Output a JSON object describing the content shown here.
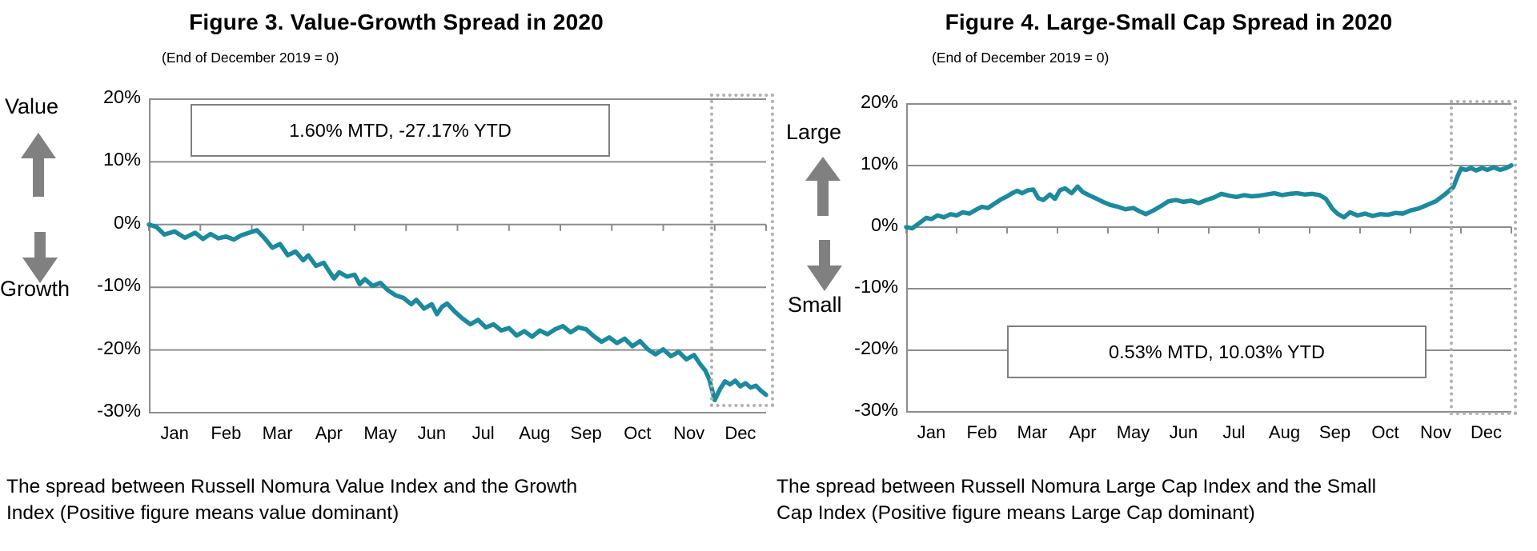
{
  "colors": {
    "line": "#1b8a9e",
    "grid": "#8c8c8c",
    "arrow": "#808080",
    "highlight_border": "#b1b1b1",
    "text": "#000000"
  },
  "chart_data": [
    {
      "type": "line",
      "title": "Figure 3. Value-Growth Spread in 2020",
      "subtitle": "(End of December 2019 = 0)",
      "upper_label": "Value",
      "lower_label": "Growth",
      "annotation": "1.60% MTD, -27.17% YTD",
      "caption": "The spread between Russell Nomura Value Index and the Growth Index (Positive figure means value dominant)",
      "xlabel": "",
      "ylabel": "",
      "x_unit": "months elapsed (0 = end of Dec 2019, 12 = end of Dec 2020)",
      "categories": [
        "Jan",
        "Feb",
        "Mar",
        "Apr",
        "May",
        "Jun",
        "Jul",
        "Aug",
        "Sep",
        "Oct",
        "Nov",
        "Dec"
      ],
      "ylim": [
        -30,
        20
      ],
      "ytick_values": [
        20,
        10,
        0,
        -10,
        -20,
        -30
      ],
      "ytick_labels": [
        "20%",
        "10%",
        "0%",
        "-10%",
        "-20%",
        "-30%"
      ],
      "grid": true,
      "legend": "none",
      "line_color": "#1b8a9e",
      "highlight_region": "December (dotted box)",
      "x": [
        0,
        0.15,
        0.3,
        0.5,
        0.7,
        0.9,
        1.05,
        1.2,
        1.35,
        1.5,
        1.65,
        1.8,
        1.95,
        2.1,
        2.25,
        2.4,
        2.55,
        2.7,
        2.85,
        3.0,
        3.1,
        3.25,
        3.4,
        3.5,
        3.6,
        3.7,
        3.85,
        4.0,
        4.1,
        4.2,
        4.35,
        4.5,
        4.65,
        4.8,
        4.95,
        5.1,
        5.2,
        5.35,
        5.5,
        5.6,
        5.7,
        5.8,
        5.95,
        6.1,
        6.25,
        6.4,
        6.55,
        6.7,
        6.85,
        7.0,
        7.15,
        7.3,
        7.45,
        7.6,
        7.75,
        7.9,
        8.05,
        8.2,
        8.35,
        8.5,
        8.65,
        8.8,
        8.95,
        9.1,
        9.25,
        9.4,
        9.55,
        9.7,
        9.85,
        10.0,
        10.15,
        10.3,
        10.45,
        10.6,
        10.72,
        10.82,
        10.9,
        11.0,
        11.1,
        11.2,
        11.3,
        11.4,
        11.5,
        11.6,
        11.7,
        11.8,
        11.9,
        12.0
      ],
      "values": [
        0,
        -0.4,
        -1.6,
        -1.1,
        -2.1,
        -1.3,
        -2.3,
        -1.5,
        -2.2,
        -1.9,
        -2.4,
        -1.7,
        -1.3,
        -0.9,
        -2.2,
        -3.7,
        -3.1,
        -4.9,
        -4.3,
        -5.7,
        -4.9,
        -6.6,
        -6.1,
        -7.4,
        -8.6,
        -7.6,
        -8.3,
        -8.0,
        -9.5,
        -8.7,
        -9.8,
        -9.3,
        -10.5,
        -11.3,
        -11.7,
        -12.7,
        -12.0,
        -13.4,
        -12.7,
        -14.3,
        -13.1,
        -12.6,
        -13.9,
        -15.0,
        -15.9,
        -15.2,
        -16.4,
        -15.9,
        -16.9,
        -16.5,
        -17.7,
        -17.0,
        -17.9,
        -16.9,
        -17.5,
        -16.7,
        -16.2,
        -17.2,
        -16.4,
        -16.7,
        -17.8,
        -18.7,
        -18.0,
        -18.9,
        -18.2,
        -19.4,
        -18.6,
        -19.9,
        -20.7,
        -19.9,
        -21.0,
        -20.3,
        -21.5,
        -20.8,
        -22.3,
        -23.3,
        -24.8,
        -28.0,
        -26.3,
        -25.0,
        -25.5,
        -24.9,
        -25.8,
        -25.3,
        -26.0,
        -25.7,
        -26.5,
        -27.17
      ],
      "mtd": "1.60%",
      "ytd": "-27.17%"
    },
    {
      "type": "line",
      "title": "Figure 4. Large-Small Cap Spread in 2020",
      "subtitle": "(End of December 2019 = 0)",
      "upper_label": "Large",
      "lower_label": "Small",
      "annotation": "0.53% MTD, 10.03% YTD",
      "caption": "The spread between Russell Nomura Large Cap Index and the Small Cap Index (Positive figure means Large Cap dominant)",
      "xlabel": "",
      "ylabel": "",
      "x_unit": "months elapsed (0 = end of Dec 2019, 12 = end of Dec 2020)",
      "categories": [
        "Jan",
        "Feb",
        "Mar",
        "Apr",
        "May",
        "Jun",
        "Jul",
        "Aug",
        "Sep",
        "Oct",
        "Nov",
        "Dec"
      ],
      "ylim": [
        -30,
        20
      ],
      "ytick_values": [
        20,
        10,
        0,
        -10,
        -20,
        -30
      ],
      "ytick_labels": [
        "20%",
        "10%",
        "0%",
        "-10%",
        "-20%",
        "-30%"
      ],
      "grid": true,
      "legend": "none",
      "line_color": "#1b8a9e",
      "highlight_region": "December (dotted box)",
      "x": [
        0,
        0.12,
        0.25,
        0.4,
        0.5,
        0.62,
        0.75,
        0.88,
        1.0,
        1.12,
        1.25,
        1.4,
        1.5,
        1.62,
        1.75,
        1.88,
        2.0,
        2.1,
        2.2,
        2.3,
        2.42,
        2.52,
        2.62,
        2.72,
        2.85,
        2.95,
        3.05,
        3.15,
        3.28,
        3.4,
        3.5,
        3.62,
        3.75,
        3.9,
        4.05,
        4.2,
        4.35,
        4.5,
        4.62,
        4.75,
        4.9,
        5.05,
        5.2,
        5.35,
        5.5,
        5.65,
        5.8,
        5.95,
        6.1,
        6.25,
        6.4,
        6.55,
        6.7,
        6.85,
        7.0,
        7.15,
        7.3,
        7.45,
        7.6,
        7.75,
        7.9,
        8.05,
        8.2,
        8.32,
        8.45,
        8.55,
        8.68,
        8.8,
        8.95,
        9.1,
        9.25,
        9.4,
        9.55,
        9.7,
        9.85,
        10.0,
        10.15,
        10.3,
        10.5,
        10.68,
        10.85,
        10.93,
        11.0,
        11.1,
        11.2,
        11.3,
        11.42,
        11.52,
        11.65,
        11.78,
        11.9,
        12.0
      ],
      "values": [
        0,
        -0.2,
        0.6,
        1.5,
        1.3,
        1.9,
        1.6,
        2.1,
        1.9,
        2.4,
        2.2,
        2.9,
        3.3,
        3.1,
        3.8,
        4.5,
        5.0,
        5.5,
        5.9,
        5.5,
        6.0,
        6.1,
        4.7,
        4.4,
        5.3,
        4.6,
        6.0,
        6.3,
        5.5,
        6.6,
        5.7,
        5.2,
        4.7,
        4.1,
        3.6,
        3.3,
        2.9,
        3.1,
        2.6,
        2.1,
        2.7,
        3.4,
        4.2,
        4.4,
        4.1,
        4.3,
        3.9,
        4.4,
        4.8,
        5.4,
        5.1,
        4.9,
        5.2,
        5.0,
        5.1,
        5.3,
        5.5,
        5.2,
        5.4,
        5.5,
        5.3,
        5.4,
        5.2,
        4.6,
        3.0,
        2.2,
        1.6,
        2.4,
        1.9,
        2.2,
        1.8,
        2.1,
        2.0,
        2.3,
        2.2,
        2.7,
        3.0,
        3.5,
        4.2,
        5.3,
        6.5,
        8.2,
        9.5,
        9.3,
        9.6,
        9.2,
        9.6,
        9.3,
        9.7,
        9.3,
        9.6,
        10.03
      ],
      "mtd": "0.53%",
      "ytd": "10.03%"
    }
  ]
}
